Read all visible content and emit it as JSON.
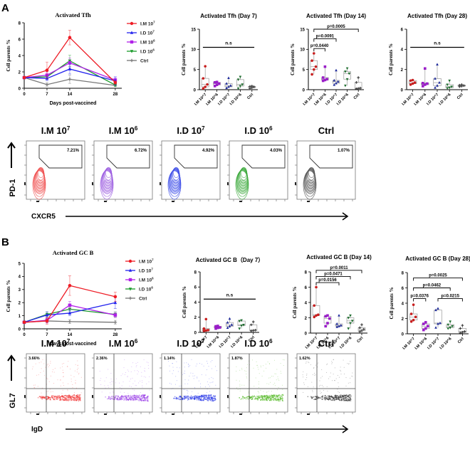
{
  "figure": {
    "panels": [
      {
        "letter": "A",
        "flow": {
          "y_marker": "PD-1",
          "x_marker": "CXCR5",
          "gate_type": "polygon",
          "plots": [
            {
              "label_main": "I.M 10",
              "label_exp": "7",
              "percent": "7.21%",
              "color": "#f05050"
            },
            {
              "label_main": "I.M 10",
              "label_exp": "6",
              "percent": "6.72%",
              "color": "#9a5ae0"
            },
            {
              "label_main": "I.D 10",
              "label_exp": "7",
              "percent": "4.92%",
              "color": "#3a4ae8"
            },
            {
              "label_main": "I.D 10",
              "label_exp": "6",
              "percent": "4.03%",
              "color": "#3aa83a"
            },
            {
              "label_main": "Ctrl",
              "label_exp": "",
              "percent": "1.07%",
              "color": "#555555"
            }
          ]
        }
      },
      {
        "letter": "B",
        "flow": {
          "y_marker": "GL7",
          "x_marker": "IgD",
          "gate_type": "quadrant",
          "plots": [
            {
              "label_main": "I.M 10",
              "label_exp": "7",
              "percent": "3.66%",
              "color": "#f03030"
            },
            {
              "label_main": "I.M 10",
              "label_exp": "6",
              "percent": "2.36%",
              "color": "#9a40e8"
            },
            {
              "label_main": "I.D 10",
              "label_exp": "7",
              "percent": "1.14%",
              "color": "#2a38e8"
            },
            {
              "label_main": "I.D 10",
              "label_exp": "6",
              "percent": "1.87%",
              "color": "#50b820"
            },
            {
              "label_main": "Ctrl",
              "label_exp": "",
              "percent": "1.62%",
              "color": "#333333"
            }
          ]
        }
      }
    ]
  },
  "chart_data": [
    {
      "id": "tfh-line",
      "type": "line",
      "title": "Activated Tfh",
      "xlabel": "Days post-vaccined",
      "ylabel": "Cell parents %",
      "x": [
        0,
        7,
        14,
        28
      ],
      "xticks": [
        0,
        7,
        14,
        28
      ],
      "xlim": [
        0,
        30
      ],
      "ylim": [
        0,
        8
      ],
      "yticks": [
        0,
        2,
        4,
        6,
        8
      ],
      "legend": "right",
      "series": [
        {
          "name": "I.M 10",
          "sup": "7",
          "color": "#ee1c25",
          "marker": "circle",
          "values": [
            1.3,
            2.2,
            6.2,
            0.7
          ],
          "err": [
            0.15,
            1.0,
            0.9,
            0.2
          ]
        },
        {
          "name": "I.D 10",
          "sup": "7",
          "color": "#2424ee",
          "marker": "triangle",
          "values": [
            1.3,
            1.2,
            2.35,
            0.9
          ],
          "err": [
            0.1,
            0.3,
            0.6,
            0.5
          ]
        },
        {
          "name": "I.M 10",
          "sup": "6",
          "color": "#b020e8",
          "marker": "square",
          "values": [
            1.3,
            1.6,
            3.1,
            1.0
          ],
          "err": [
            0.1,
            0.4,
            0.6,
            0.3
          ]
        },
        {
          "name": "I.D 10",
          "sup": "6",
          "color": "#1a9a2a",
          "marker": "triangle-down",
          "values": [
            1.3,
            1.4,
            3.35,
            0.4
          ],
          "err": [
            0.1,
            0.3,
            0.7,
            0.2
          ]
        },
        {
          "name": "Ctrl",
          "sup": "",
          "color": "#777777",
          "marker": "plus",
          "values": [
            1.3,
            0.45,
            1.1,
            0.35
          ],
          "err": [
            0.1,
            0.2,
            0.5,
            0.1
          ]
        }
      ]
    },
    {
      "id": "tfh-day7",
      "type": "box",
      "title": "Activated Tfh (Day 7)",
      "ylabel": "Cell parents %",
      "ylim": [
        0,
        15
      ],
      "yticks": [
        0,
        5,
        10,
        15
      ],
      "categories": [
        "I.M 10^7",
        "I.M 10^6",
        "I.D 10^7",
        "I.D 10^6",
        "Ctrl"
      ],
      "colors": [
        "#c81e1e",
        "#9a1ec8",
        "#1e2a9a",
        "#1e6e2e",
        "#444444"
      ],
      "markers": [
        "circle",
        "square",
        "triangle",
        "triangle-down",
        "plus"
      ],
      "points": [
        [
          0.3,
          0.7,
          1.3,
          2.8,
          5.8
        ],
        [
          0.9,
          1.2,
          1.5,
          1.8,
          1.9
        ],
        [
          0.4,
          0.7,
          1.0,
          1.5,
          2.9
        ],
        [
          0.3,
          0.9,
          1.3,
          2.5,
          3.2
        ],
        [
          0.3,
          0.5,
          0.7,
          0.8,
          0.9
        ]
      ],
      "annotations": [
        {
          "text": "n.s",
          "from": 0,
          "to": 4,
          "level": 10.5,
          "type": "line"
        }
      ]
    },
    {
      "id": "tfh-day14",
      "type": "box",
      "title": "Activated Tfh (Day 14)",
      "ylabel": "Cell parents %",
      "ylim": [
        0,
        15
      ],
      "yticks": [
        0,
        5,
        10,
        15
      ],
      "categories": [
        "I.M 10^7",
        "I.M 10^6",
        "I.D 10^7",
        "I.D 10^6",
        "Ctrl"
      ],
      "colors": [
        "#c81e1e",
        "#9a1ec8",
        "#1e2a9a",
        "#1e6e2e",
        "#444444"
      ],
      "markers": [
        "circle",
        "square",
        "triangle",
        "triangle-down",
        "plus"
      ],
      "points": [
        [
          3.8,
          5.0,
          5.7,
          7.2,
          9.0
        ],
        [
          2.2,
          2.4,
          2.6,
          3.0,
          5.7
        ],
        [
          1.2,
          1.6,
          2.0,
          2.3,
          4.8
        ],
        [
          1.0,
          2.6,
          4.0,
          4.5,
          5.3
        ],
        [
          0.2,
          0.3,
          0.4,
          1.8,
          3.0
        ]
      ],
      "annotations": [
        {
          "text": "p=0.0440",
          "from": 0,
          "to": 1,
          "level": 10.2,
          "type": "bracket"
        },
        {
          "text": "p=0.0091",
          "from": 0,
          "to": 2,
          "level": 12.6,
          "type": "bracket"
        },
        {
          "text": "p=0.0005",
          "from": 0,
          "to": 4,
          "level": 15.0,
          "type": "bracket"
        }
      ]
    },
    {
      "id": "tfh-day28",
      "type": "box",
      "title": "Activated Tfh (Day 28)",
      "ylabel": "Cell parents %",
      "ylim": [
        0,
        6
      ],
      "yticks": [
        0,
        2,
        4,
        6
      ],
      "categories": [
        "I.M 10^7",
        "I.M 10^6",
        "I.D 10^7",
        "I.D 10^6",
        "Ctrl"
      ],
      "colors": [
        "#c81e1e",
        "#9a1ec8",
        "#1e2a9a",
        "#1e6e2e",
        "#444444"
      ],
      "markers": [
        "circle",
        "square",
        "triangle",
        "triangle-down",
        "plus"
      ],
      "points": [
        [
          0.5,
          0.6,
          0.7,
          0.9,
          0.95
        ],
        [
          0.35,
          0.5,
          0.6,
          0.65,
          2.1
        ],
        [
          0.2,
          0.4,
          0.7,
          1.1,
          2.5
        ],
        [
          0.15,
          0.2,
          0.3,
          0.5,
          0.9
        ],
        [
          0.3,
          0.35,
          0.4,
          0.45,
          0.5
        ]
      ],
      "annotations": [
        {
          "text": "n.s",
          "from": 0,
          "to": 4,
          "level": 4.2,
          "type": "line"
        }
      ]
    },
    {
      "id": "gcb-line",
      "type": "line",
      "title": "Activated GC B",
      "xlabel": "Days post-vaccined",
      "ylabel": "Cell parents %",
      "x": [
        0,
        7,
        14,
        28
      ],
      "xticks": [
        0,
        7,
        14,
        28
      ],
      "xlim": [
        0,
        30
      ],
      "ylim": [
        0,
        5
      ],
      "yticks": [
        0,
        1,
        2,
        3,
        4,
        5
      ],
      "legend": "right",
      "series": [
        {
          "name": "I.M 10",
          "sup": "7",
          "color": "#ee1c25",
          "marker": "circle",
          "values": [
            0.5,
            0.6,
            3.3,
            2.45
          ],
          "err": [
            0.1,
            0.25,
            0.75,
            0.35
          ]
        },
        {
          "name": "I.D 10",
          "sup": "7",
          "color": "#2424ee",
          "marker": "triangle",
          "values": [
            0.5,
            1.05,
            1.2,
            2.0
          ],
          "err": [
            0.1,
            0.25,
            0.2,
            0.45
          ]
        },
        {
          "name": "I.M 10",
          "sup": "6",
          "color": "#b020e8",
          "marker": "square",
          "values": [
            0.5,
            0.65,
            1.8,
            1.05
          ],
          "err": [
            0.1,
            0.2,
            0.3,
            0.2
          ]
        },
        {
          "name": "I.D 10",
          "sup": "6",
          "color": "#1a9a2a",
          "marker": "triangle-down",
          "values": [
            0.5,
            1.1,
            1.5,
            1.1
          ],
          "err": [
            0.1,
            0.2,
            0.2,
            0.2
          ]
        },
        {
          "name": "Ctrl",
          "sup": "",
          "color": "#777777",
          "marker": "plus",
          "values": [
            0.5,
            0.6,
            0.55,
            0.5
          ],
          "err": [
            0.1,
            0.15,
            0.15,
            0.15
          ]
        }
      ]
    },
    {
      "id": "gcb-day7",
      "type": "box",
      "title": "Activated GC B（Day 7）",
      "ylabel": "Cell parents %",
      "ylim": [
        0,
        8
      ],
      "yticks": [
        0,
        2,
        4,
        6,
        8
      ],
      "categories": [
        "I.M 10^7",
        "I.M 10^6",
        "I.D 10^7",
        "I.D 10^6",
        "Ctrl"
      ],
      "colors": [
        "#c81e1e",
        "#9a1ec8",
        "#1e2a9a",
        "#1e6e2e",
        "#444444"
      ],
      "markers": [
        "circle",
        "square",
        "triangle",
        "triangle-down",
        "plus"
      ],
      "points": [
        [
          0.2,
          0.25,
          0.3,
          0.5,
          1.75
        ],
        [
          0.5,
          0.6,
          0.65,
          0.8,
          0.85
        ],
        [
          0.6,
          0.8,
          1.0,
          1.3,
          1.8
        ],
        [
          0.5,
          0.9,
          1.0,
          1.5,
          1.6
        ],
        [
          0.2,
          0.25,
          0.3,
          1.0,
          1.4
        ]
      ],
      "annotations": [
        {
          "text": "n.s",
          "from": 0,
          "to": 4,
          "level": 4.4,
          "type": "line"
        }
      ]
    },
    {
      "id": "gcb-day14",
      "type": "box",
      "title": "Activated GC B (Day 14)",
      "ylabel": "Cell parents %",
      "ylim": [
        0,
        8
      ],
      "yticks": [
        0,
        2,
        4,
        6,
        8
      ],
      "categories": [
        "I.M 10^7",
        "I.M 10^6",
        "I.D 10^7",
        "I.D 10^6",
        "Ctrl"
      ],
      "colors": [
        "#c81e1e",
        "#9a1ec8",
        "#1e2a9a",
        "#1e6e2e",
        "#444444"
      ],
      "markers": [
        "circle",
        "square",
        "triangle",
        "triangle-down",
        "plus"
      ],
      "points": [
        [
          2.1,
          2.3,
          2.4,
          3.6,
          6.0
        ],
        [
          0.9,
          1.3,
          1.9,
          2.2,
          2.3
        ],
        [
          0.8,
          0.9,
          1.0,
          1.2,
          2.3
        ],
        [
          0.6,
          1.3,
          1.6,
          2.0,
          2.3
        ],
        [
          0.2,
          0.3,
          0.5,
          0.7,
          1.1
        ]
      ],
      "annotations": [
        {
          "text": "p=0.0156",
          "from": 0,
          "to": 2,
          "level": 6.6,
          "type": "bracket"
        },
        {
          "text": "p=0.0471",
          "from": 0,
          "to": 3,
          "level": 7.4,
          "type": "bracket"
        },
        {
          "text": "p=0.0011",
          "from": 0,
          "to": 4,
          "level": 8.2,
          "type": "bracket"
        }
      ]
    },
    {
      "id": "gcb-day28",
      "type": "box",
      "title": "Activated GC B (Day 28)",
      "ylabel": "Cell parents %",
      "ylim": [
        0,
        8
      ],
      "yticks": [
        0,
        2,
        4,
        6,
        8
      ],
      "categories": [
        "I.M 10^7",
        "I.M 10^6",
        "I.D 10^7",
        "I.D 10^6",
        "Ctrl"
      ],
      "colors": [
        "#c81e1e",
        "#9a1ec8",
        "#1e2a9a",
        "#1e6e2e",
        "#444444"
      ],
      "markers": [
        "circle",
        "square",
        "triangle",
        "triangle-down",
        "plus"
      ],
      "points": [
        [
          1.6,
          1.8,
          2.2,
          2.6,
          3.8
        ],
        [
          0.5,
          0.7,
          1.0,
          1.3,
          1.5
        ],
        [
          0.8,
          1.3,
          1.4,
          3.1,
          3.3
        ],
        [
          0.7,
          0.8,
          1.0,
          1.2,
          1.6
        ],
        [
          0.1,
          0.2,
          0.3,
          0.7,
          1.1
        ]
      ],
      "annotations": [
        {
          "text": "p=0.0376",
          "from": 0,
          "to": 1,
          "level": 4.6,
          "type": "bracket"
        },
        {
          "text": "p=0.0215",
          "from": 2,
          "to": 4,
          "level": 4.6,
          "type": "bracket"
        },
        {
          "text": "p=0.0462",
          "from": 0,
          "to": 3,
          "level": 6.0,
          "type": "bracket"
        },
        {
          "text": "p=0.0025",
          "from": 0,
          "to": 4,
          "level": 7.3,
          "type": "bracket"
        }
      ]
    }
  ]
}
